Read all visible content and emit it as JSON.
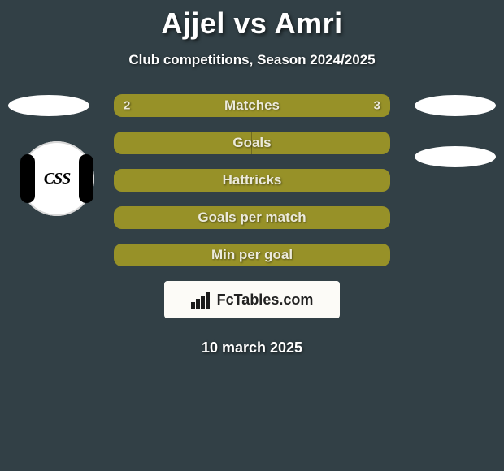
{
  "title": {
    "player_a": "Ajjel",
    "vs": "vs",
    "player_b": "Amri",
    "color": "#ffffff"
  },
  "subtitle": "Club competitions, Season 2024/2025",
  "accent": {
    "bar_fill": "#979128",
    "bar_border": "#d9d173",
    "text_on_bar": "#eceadb",
    "page_bg": "#324046"
  },
  "rows": [
    {
      "key": "matches",
      "label": "Matches",
      "left_value": "2",
      "right_value": "3",
      "left_width_pct": 40,
      "right_width_pct": 60,
      "show_values": true,
      "show_avatars": true,
      "outline_only": false
    },
    {
      "key": "goals",
      "label": "Goals",
      "left_value": "",
      "right_value": "",
      "left_width_pct": 50,
      "right_width_pct": 50,
      "show_values": false,
      "show_avatars": false,
      "outline_only": false
    },
    {
      "key": "hattricks",
      "label": "Hattricks",
      "left_value": "",
      "right_value": "",
      "left_width_pct": 50,
      "right_width_pct": 50,
      "show_values": false,
      "show_avatars": false,
      "outline_only": true
    },
    {
      "key": "gpm",
      "label": "Goals per match",
      "left_value": "",
      "right_value": "",
      "left_width_pct": 50,
      "right_width_pct": 50,
      "show_values": false,
      "show_avatars": false,
      "outline_only": true
    },
    {
      "key": "mpg",
      "label": "Min per goal",
      "left_value": "",
      "right_value": "",
      "left_width_pct": 50,
      "right_width_pct": 50,
      "show_values": false,
      "show_avatars": false,
      "outline_only": true
    }
  ],
  "club_left": {
    "text": "CSS"
  },
  "brand": {
    "text": "FcTables.com"
  },
  "brand_bars": {
    "heights": [
      8,
      12,
      16,
      20
    ],
    "color": "#1b1b1b"
  },
  "date": "10 march 2025"
}
